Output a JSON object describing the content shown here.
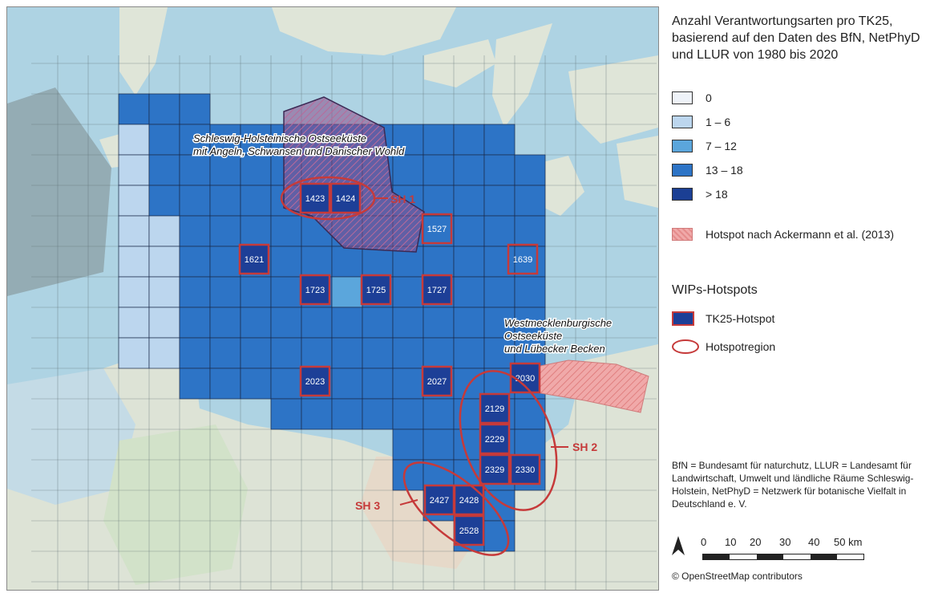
{
  "legend": {
    "title": "Anzahl Verantwortungsarten pro TK25, basierend auf den Daten des BfN, NetPhyD und LLUR von 1980 bis 2020",
    "classes": [
      {
        "label": "0",
        "color": "#eef2f8"
      },
      {
        "label": "1 – 6",
        "color": "#bcd6ee"
      },
      {
        "label": "7 – 12",
        "color": "#5ba6dc"
      },
      {
        "label": "13 – 18",
        "color": "#2d74c6"
      },
      {
        "label": "> 18",
        "color": "#1b3f94"
      }
    ],
    "ackermann_label": "Hotspot nach Ackermann et al. (2013)",
    "wips_title": "WIPs-Hotspots",
    "tk25_hotspot_label": "TK25-Hotspot",
    "hotspotregion_label": "Hotspotregion",
    "footnote": "BfN = Bundesamt für naturchutz, LLUR = Landesamt für Landwirtschaft, Umwelt und ländliche Räume Schleswig-Holstein, NetPhyD = Netzwerk für botanische Vielfalt in Deutschland e. V.",
    "scale_labels": [
      "0",
      "10",
      "20",
      "30",
      "40",
      "50 km"
    ],
    "attribution": "© OpenStreetMap contributors",
    "north_symbol": "A"
  },
  "map": {
    "region_labels": {
      "sh_ost_line1": "Schleswig-Holsteinische Ostseeküste",
      "sh_ost_line2": "mit Angeln, Schwansen und Dänischer Wohld",
      "west_line1": "Westmecklenburgische",
      "west_line2": "Ostseeküste",
      "west_line3": "und Lübecker Becken"
    },
    "hotspot_regions": [
      "SH 1",
      "SH 2",
      "SH 3"
    ],
    "hotspots": [
      "1423",
      "1424",
      "1527",
      "1621",
      "1639",
      "1723",
      "1725",
      "1727",
      "2023",
      "2027",
      "2030",
      "2129",
      "2229",
      "2329",
      "2330",
      "2427",
      "2428",
      "2528"
    ],
    "colors": {
      "sea": "#aed3e3",
      "land": "#dde3d6",
      "hotspot_border": "#c63a3a",
      "ackermann": "#e58c8c"
    }
  }
}
